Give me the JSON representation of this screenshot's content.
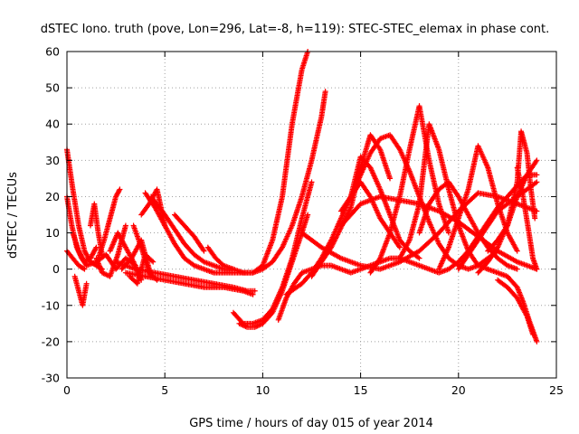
{
  "chart_data": {
    "type": "scatter",
    "title": "dSTEC Iono. truth (pove, Lon=296, Lat=-8, h=119): STEC-STEC_elemax in phase cont.",
    "xlabel": "GPS time / hours of day 015 of year 2014",
    "ylabel": "dSTEC  / TECUs",
    "xlim": [
      0,
      25
    ],
    "ylim": [
      -30,
      60
    ],
    "xticks": [
      0,
      5,
      10,
      15,
      20,
      25
    ],
    "yticks": [
      -30,
      -20,
      -10,
      0,
      10,
      20,
      30,
      40,
      50,
      60
    ],
    "grid": true,
    "marker": "plus",
    "color": "#ff0000",
    "series": [
      {
        "x": [
          0.0,
          0.3,
          0.6,
          0.9,
          1.2,
          1.5,
          1.8
        ],
        "y": [
          33,
          22,
          12,
          5,
          2,
          1,
          0
        ]
      },
      {
        "x": [
          0.0,
          0.25,
          0.5,
          0.75,
          1.0
        ],
        "y": [
          20,
          12,
          6,
          3,
          1
        ]
      },
      {
        "x": [
          0.0,
          0.3,
          0.6,
          0.9
        ],
        "y": [
          5,
          3,
          1,
          0
        ]
      },
      {
        "x": [
          0.4,
          0.6,
          0.8,
          1.0
        ],
        "y": [
          -2,
          -6,
          -10,
          -4
        ]
      },
      {
        "x": [
          0.3,
          0.6,
          0.9,
          1.2,
          1.5
        ],
        "y": [
          10,
          5,
          2,
          3,
          6
        ]
      },
      {
        "x": [
          1.2,
          1.4,
          1.6,
          1.8
        ],
        "y": [
          12,
          18,
          10,
          4
        ]
      },
      {
        "x": [
          1.6,
          1.9,
          2.2,
          2.5,
          2.7
        ],
        "y": [
          3,
          8,
          14,
          20,
          22
        ]
      },
      {
        "x": [
          1.0,
          1.5,
          2.0,
          2.5,
          3.0,
          3.5
        ],
        "y": [
          1,
          2,
          4,
          0,
          3,
          1
        ]
      },
      {
        "x": [
          1.5,
          1.8,
          2.2,
          2.6,
          3.0
        ],
        "y": [
          3,
          -1,
          -2,
          4,
          12
        ]
      },
      {
        "x": [
          2.2,
          2.6,
          3.0,
          3.4,
          3.8
        ],
        "y": [
          5,
          10,
          6,
          2,
          -3
        ]
      },
      {
        "x": [
          2.8,
          3.3,
          3.8,
          4.3
        ],
        "y": [
          0,
          3,
          8,
          -2
        ]
      },
      {
        "x": [
          3.2,
          3.6,
          4.0,
          4.4
        ],
        "y": [
          -2,
          -4,
          4,
          2
        ]
      },
      {
        "x": [
          3.4,
          3.8,
          4.2,
          4.6
        ],
        "y": [
          12,
          6,
          -1,
          -3
        ]
      },
      {
        "x": [
          3.8,
          4.2,
          4.6,
          5.0
        ],
        "y": [
          15,
          18,
          22,
          12
        ]
      },
      {
        "x": [
          4.0,
          4.5,
          5.0,
          5.5,
          6.0,
          6.5,
          7.0,
          7.5,
          8.0,
          8.5,
          9.0,
          9.5,
          10.0,
          10.5,
          11.0,
          11.5,
          12.0,
          12.3
        ],
        "y": [
          21,
          17,
          12,
          7,
          3,
          1,
          0,
          -1,
          -1,
          -1,
          -1,
          -1,
          1,
          8,
          20,
          40,
          55,
          60
        ]
      },
      {
        "x": [
          4.3,
          5.0,
          5.5,
          6.0,
          6.5,
          7.0,
          7.5,
          8.0,
          8.5,
          9.0,
          9.5,
          10.0,
          10.5,
          11.0,
          11.5,
          12.0,
          12.5,
          13.0,
          13.2
        ],
        "y": [
          20,
          15,
          11,
          7,
          4,
          2,
          1,
          0,
          0,
          -1,
          -1,
          0,
          2,
          6,
          12,
          20,
          30,
          42,
          49
        ]
      },
      {
        "x": [
          2.5,
          3.5,
          4.5,
          5.5,
          6.5,
          7.5,
          8.5,
          9.2,
          9.6
        ],
        "y": [
          2,
          0,
          -1,
          -2,
          -3,
          -4,
          -5,
          -6,
          -6
        ]
      },
      {
        "x": [
          3.0,
          4.0,
          5.0,
          6.0,
          7.0,
          8.0,
          9.0,
          9.5
        ],
        "y": [
          -1,
          -2,
          -3,
          -4,
          -5,
          -5,
          -6,
          -7
        ]
      },
      {
        "x": [
          5.5,
          6.0,
          6.5,
          7.0
        ],
        "y": [
          15,
          12,
          9,
          5
        ]
      },
      {
        "x": [
          7.2,
          7.6,
          8.0,
          8.5
        ],
        "y": [
          6,
          3,
          1,
          0
        ]
      },
      {
        "x": [
          8.5,
          9.0,
          9.5,
          10.0,
          10.5,
          11.0,
          11.5,
          12.0,
          12.5
        ],
        "y": [
          -12,
          -15,
          -15,
          -14,
          -11,
          -5,
          3,
          14,
          24
        ]
      },
      {
        "x": [
          8.8,
          9.2,
          9.6,
          10.0,
          10.5,
          11.0,
          11.5,
          12.0,
          12.3
        ],
        "y": [
          -15,
          -16,
          -16,
          -15,
          -12,
          -6,
          2,
          10,
          15
        ]
      },
      {
        "x": [
          10.8,
          11.2,
          11.6,
          12.0,
          12.5,
          13.0,
          13.5,
          14.0,
          14.5,
          15.0,
          15.5,
          16.0,
          16.5,
          17.0,
          17.5,
          18.0,
          18.5,
          19.0,
          19.5,
          20.0,
          20.5,
          21.0,
          21.5,
          22.0,
          22.5,
          23.0,
          23.5,
          24.0
        ],
        "y": [
          -14,
          -8,
          -4,
          -1,
          0,
          1,
          1,
          0,
          -1,
          0,
          1,
          2,
          3,
          3,
          2,
          1,
          0,
          -1,
          0,
          2,
          5,
          9,
          13,
          17,
          20,
          23,
          26,
          30
        ]
      },
      {
        "x": [
          11.2,
          12.0,
          12.5,
          13.0,
          13.5,
          14.0,
          14.5,
          15.0,
          15.5,
          16.0,
          16.5,
          17.0,
          17.5,
          18.0,
          18.5,
          19.0,
          19.5,
          20.0,
          20.5,
          21.0,
          21.5,
          22.0
        ],
        "y": [
          -7,
          -4,
          -1,
          3,
          8,
          14,
          20,
          26,
          32,
          36,
          37,
          33,
          27,
          20,
          13,
          7,
          3,
          1,
          0,
          1,
          3,
          5
        ]
      },
      {
        "x": [
          12.0,
          13.0,
          14.0,
          15.0,
          16.0,
          17.0,
          18.0,
          19.0,
          20.0,
          21.0,
          22.0,
          23.0,
          24.0
        ],
        "y": [
          10,
          6,
          3,
          1,
          0,
          2,
          5,
          10,
          16,
          21,
          20,
          18,
          16
        ]
      },
      {
        "x": [
          12.5,
          13.5,
          14.5,
          15.0,
          15.5,
          16.0,
          16.5
        ],
        "y": [
          -2,
          6,
          17,
          28,
          37,
          33,
          25
        ]
      },
      {
        "x": [
          14.0,
          15.0,
          16.0,
          17.0,
          18.0,
          19.0,
          20.0,
          21.0,
          22.0,
          23.0,
          24.0
        ],
        "y": [
          12,
          18,
          20,
          19,
          18,
          16,
          13,
          9,
          5,
          2,
          0
        ]
      },
      {
        "x": [
          14.0,
          14.5,
          15.0,
          15.5,
          16.0,
          16.5,
          17.0,
          17.5,
          18.0
        ],
        "y": [
          16,
          20,
          31,
          28,
          22,
          15,
          8,
          5,
          3
        ]
      },
      {
        "x": [
          14.5,
          15.0,
          15.5,
          16.0,
          16.5,
          17.0
        ],
        "y": [
          20,
          24,
          20,
          14,
          10,
          6
        ]
      },
      {
        "x": [
          15.5,
          16.0,
          16.5,
          17.0,
          17.5,
          18.0,
          18.5,
          19.0,
          19.5
        ],
        "y": [
          -1,
          3,
          10,
          20,
          33,
          45,
          30,
          18,
          10
        ]
      },
      {
        "x": [
          17.0,
          17.5,
          18.0,
          18.5,
          19.0,
          19.5,
          20.0,
          20.5,
          21.0,
          21.5
        ],
        "y": [
          3,
          8,
          18,
          40,
          33,
          22,
          12,
          5,
          1,
          0
        ]
      },
      {
        "x": [
          18.0,
          18.5,
          19.0,
          19.5,
          20.0,
          20.5,
          21.0,
          21.5,
          22.0,
          22.5,
          23.0
        ],
        "y": [
          10,
          18,
          22,
          24,
          20,
          15,
          10,
          6,
          3,
          1,
          0
        ]
      },
      {
        "x": [
          19.0,
          19.5,
          20.0,
          20.5,
          21.0,
          21.5,
          22.0,
          22.5,
          23.0
        ],
        "y": [
          0,
          6,
          14,
          22,
          34,
          28,
          18,
          10,
          5
        ]
      },
      {
        "x": [
          20.0,
          20.5,
          21.0,
          21.5,
          22.0,
          22.5,
          23.0,
          23.5,
          24.0
        ],
        "y": [
          0,
          4,
          8,
          12,
          16,
          18,
          20,
          22,
          24
        ]
      },
      {
        "x": [
          21.0,
          21.5,
          22.0,
          22.5,
          23.0,
          23.5,
          24.0
        ],
        "y": [
          -1,
          2,
          6,
          12,
          20,
          26,
          26
        ]
      },
      {
        "x": [
          21.5,
          22.0,
          22.5,
          23.0,
          23.2,
          23.5,
          23.7,
          23.9
        ],
        "y": [
          5,
          8,
          12,
          24,
          38,
          32,
          22,
          14
        ]
      },
      {
        "x": [
          21.5,
          22.0,
          22.5,
          23.0,
          23.3,
          23.6,
          23.8,
          24.0
        ],
        "y": [
          0,
          -1,
          -2,
          -5,
          -9,
          -14,
          -17,
          -20
        ]
      },
      {
        "x": [
          22.0,
          22.5,
          23.0,
          23.5,
          23.8
        ],
        "y": [
          -3,
          -5,
          -8,
          -13,
          -18
        ]
      },
      {
        "x": [
          23.0,
          23.3,
          23.6,
          23.8,
          24.0
        ],
        "y": [
          28,
          20,
          10,
          3,
          0
        ]
      }
    ]
  }
}
